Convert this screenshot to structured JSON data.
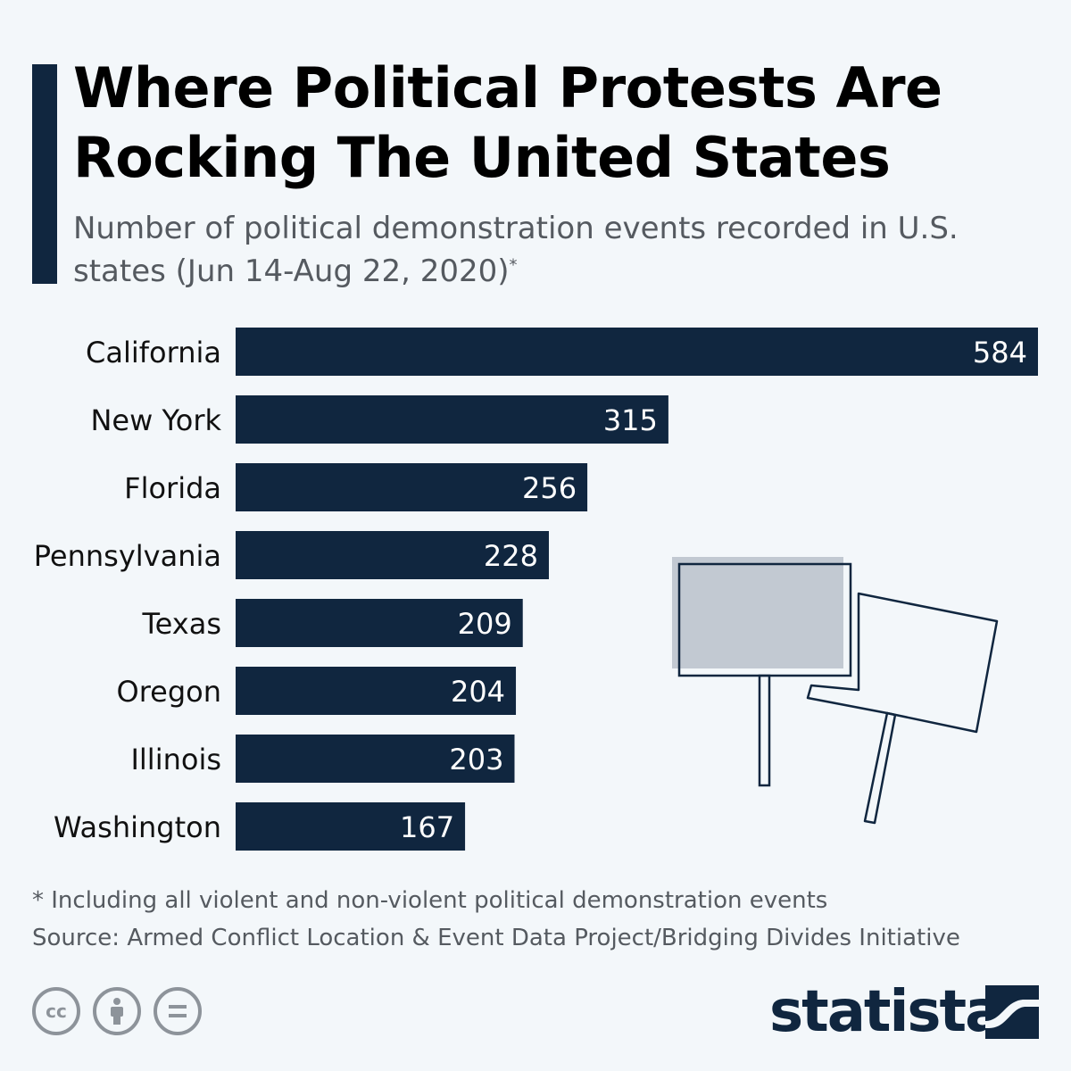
{
  "header": {
    "title": "Where Political Protests Are Rocking The United States",
    "subtitle": "Number of political demonstration events recorded in U.S. states (Jun 14-Aug 22, 2020)",
    "subtitle_marker": "*"
  },
  "chart_data": {
    "type": "bar",
    "orientation": "horizontal",
    "title": "Where Political Protests Are Rocking The United States",
    "categories": [
      "California",
      "New York",
      "Florida",
      "Pennsylvania",
      "Texas",
      "Oregon",
      "Illinois",
      "Washington"
    ],
    "values": [
      584,
      315,
      256,
      228,
      209,
      204,
      203,
      167
    ],
    "xlim": [
      0,
      584
    ],
    "grid": false,
    "bar_color": "#10263f",
    "label_color": "#ffffff"
  },
  "footer": {
    "note": "* Including all violent and non-violent political demonstration events",
    "source": "Source: Armed Conflict Location & Event Data Project/Bridging Divides Initiative",
    "brand": "statista",
    "license_icons": [
      "cc-icon",
      "attribution-icon",
      "no-derivatives-icon"
    ],
    "cc_glyph": "cc"
  },
  "colors": {
    "accent": "#10263f",
    "background": "#f3f7fa",
    "illustration_fill": "#c2c9d2"
  }
}
